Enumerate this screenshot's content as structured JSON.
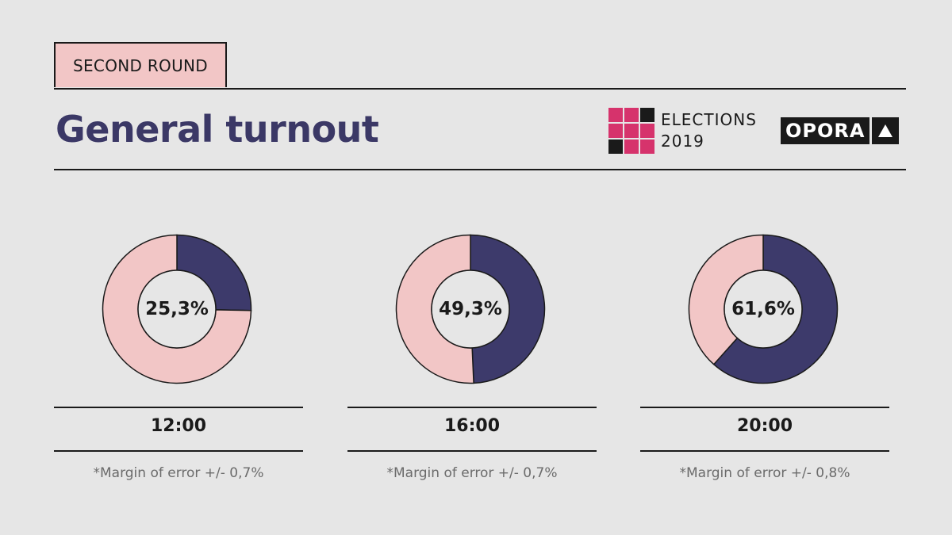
{
  "header": {
    "round_label": "SECOND ROUND",
    "title": "General turnout",
    "elections_line1": "ELECTIONS",
    "elections_line2": "2019",
    "brand": "OPORA",
    "brand_icon": "triangle-up-icon"
  },
  "colors": {
    "background": "#e6e6e6",
    "title": "#3b3866",
    "turnout": "#3d3a6b",
    "remainder": "#f2c6c6",
    "tag": "#f2c6c6",
    "logo_pink": "#d6336c"
  },
  "chart_data": [
    {
      "type": "pie",
      "categories": [
        "Turnout",
        "Remainder"
      ],
      "values": [
        25.3,
        74.7
      ],
      "center_label": "25,3%",
      "xlabel": "12:00",
      "annotation": "*Margin of error +/- 0,7%"
    },
    {
      "type": "pie",
      "categories": [
        "Turnout",
        "Remainder"
      ],
      "values": [
        49.3,
        50.7
      ],
      "center_label": "49,3%",
      "xlabel": "16:00",
      "annotation": "*Margin of error +/- 0,7%"
    },
    {
      "type": "pie",
      "categories": [
        "Turnout",
        "Remainder"
      ],
      "values": [
        61.6,
        38.4
      ],
      "center_label": "61,6%",
      "xlabel": "20:00",
      "annotation": "*Margin of error +/- 0,8%"
    }
  ]
}
